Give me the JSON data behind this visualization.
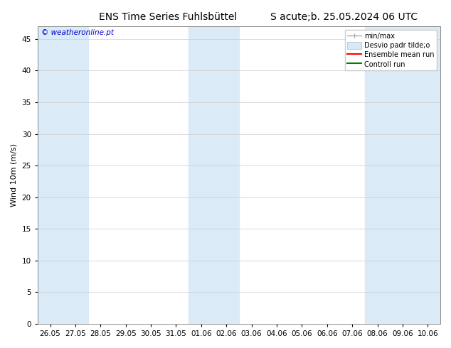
{
  "title_left": "ENS Time Series Fuhlsbüttel",
  "title_right": "S acute;b. 25.05.2024 06 UTC",
  "ylabel": "Wind 10m (m/s)",
  "ylim": [
    0,
    47
  ],
  "yticks": [
    0,
    5,
    10,
    15,
    20,
    25,
    30,
    35,
    40,
    45
  ],
  "x_labels": [
    "26.05",
    "27.05",
    "28.05",
    "29.05",
    "30.05",
    "31.05",
    "01.06",
    "02.06",
    "03.06",
    "04.06",
    "05.06",
    "06.06",
    "07.06",
    "08.06",
    "09.06",
    "10.06"
  ],
  "shade_color": "#daeaf7",
  "shade_alpha": 1.0,
  "bg_color": "#ffffff",
  "plot_bg_color": "#ffffff",
  "watermark": "© weatheronline.pt",
  "watermark_color": "#0000cc",
  "title_fontsize": 10,
  "axis_fontsize": 8,
  "tick_fontsize": 7.5,
  "shaded_indices": [
    0,
    1,
    6,
    7,
    13,
    14,
    15
  ],
  "n_days": 16,
  "legend_minmax_color": "#aaaaaa",
  "legend_desvio_color": "#d8e8f5",
  "legend_ensemble_color": "#ff0000",
  "legend_control_color": "#008000"
}
